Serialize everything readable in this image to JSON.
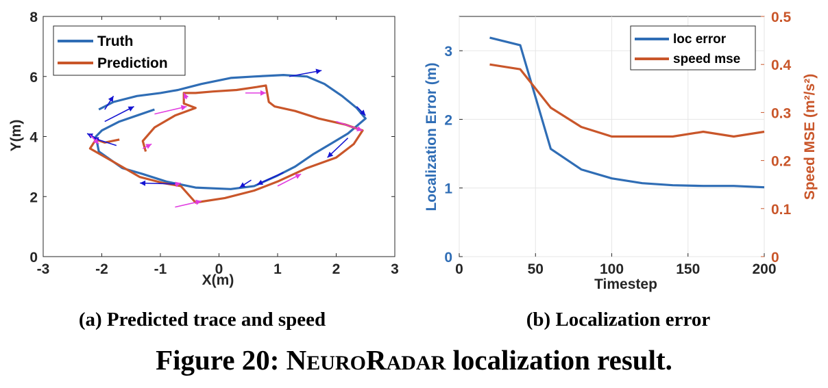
{
  "colors": {
    "blue": "#2f6db5",
    "orange": "#c9562a",
    "arrow_blue": "#1414d2",
    "arrow_magenta": "#e03ce0"
  },
  "chart_data": [
    {
      "type": "line",
      "xlabel": "X(m)",
      "ylabel": "Y(m)",
      "xlim": [
        -3,
        3
      ],
      "ylim": [
        0,
        8
      ],
      "x_ticks": [
        "-3",
        "-2",
        "-1",
        "0",
        "1",
        "2",
        "3"
      ],
      "y_ticks": [
        "0",
        "2",
        "4",
        "6",
        "8"
      ],
      "legend": {
        "position": "top-left",
        "entries": [
          "Truth",
          "Prediction"
        ]
      },
      "series": [
        {
          "name": "Truth",
          "points": [
            [
              -1.1,
              4.9
            ],
            [
              -1.4,
              4.7
            ],
            [
              -1.7,
              4.5
            ],
            [
              -2.0,
              4.2
            ],
            [
              -2.1,
              4.0
            ],
            [
              -2.05,
              3.5
            ],
            [
              -1.65,
              2.95
            ],
            [
              -1.3,
              2.75
            ],
            [
              -0.9,
              2.5
            ],
            [
              -0.4,
              2.3
            ],
            [
              0.2,
              2.25
            ],
            [
              0.6,
              2.35
            ],
            [
              1.0,
              2.7
            ],
            [
              1.3,
              3.0
            ],
            [
              1.6,
              3.4
            ],
            [
              1.9,
              3.75
            ],
            [
              2.2,
              4.1
            ],
            [
              2.5,
              4.6
            ],
            [
              2.35,
              4.95
            ],
            [
              2.1,
              5.35
            ],
            [
              1.8,
              5.75
            ],
            [
              1.5,
              6.0
            ],
            [
              1.1,
              6.05
            ],
            [
              0.6,
              6.0
            ],
            [
              0.2,
              5.95
            ],
            [
              -0.3,
              5.75
            ],
            [
              -0.7,
              5.55
            ],
            [
              -1.0,
              5.45
            ],
            [
              -1.4,
              5.35
            ],
            [
              -1.8,
              5.15
            ],
            [
              -2.05,
              4.9
            ]
          ]
        },
        {
          "name": "Prediction",
          "points": [
            [
              -1.7,
              3.9
            ],
            [
              -1.95,
              3.8
            ],
            [
              -2.1,
              3.9
            ],
            [
              -2.2,
              3.6
            ],
            [
              -1.75,
              3.1
            ],
            [
              -1.35,
              2.65
            ],
            [
              -0.95,
              2.45
            ],
            [
              -0.65,
              2.35
            ],
            [
              -0.4,
              1.8
            ],
            [
              0.1,
              1.95
            ],
            [
              0.6,
              2.2
            ],
            [
              1.0,
              2.5
            ],
            [
              1.5,
              2.95
            ],
            [
              2.0,
              3.3
            ],
            [
              2.3,
              3.75
            ],
            [
              2.45,
              4.2
            ],
            [
              2.15,
              4.4
            ],
            [
              1.7,
              4.6
            ],
            [
              1.3,
              4.85
            ],
            [
              0.95,
              5.0
            ],
            [
              0.85,
              5.15
            ],
            [
              0.8,
              5.7
            ],
            [
              0.65,
              5.65
            ],
            [
              0.3,
              5.55
            ],
            [
              -0.1,
              5.5
            ],
            [
              -0.4,
              5.45
            ],
            [
              -0.6,
              5.45
            ],
            [
              -0.6,
              5.1
            ],
            [
              -0.4,
              4.95
            ],
            [
              -0.75,
              4.7
            ],
            [
              -1.1,
              4.3
            ],
            [
              -1.3,
              3.85
            ],
            [
              -1.25,
              3.5
            ]
          ]
        }
      ],
      "arrows": [
        {
          "color": "arrow_blue",
          "from": [
            -1.95,
            4.9
          ],
          "to": [
            -1.8,
            5.35
          ]
        },
        {
          "color": "arrow_blue",
          "from": [
            -1.95,
            4.5
          ],
          "to": [
            -1.45,
            5.0
          ]
        },
        {
          "color": "arrow_blue",
          "from": [
            -2.05,
            3.9
          ],
          "to": [
            -2.25,
            4.1
          ]
        },
        {
          "color": "arrow_blue",
          "from": [
            -1.75,
            3.7
          ],
          "to": [
            -2.15,
            3.95
          ]
        },
        {
          "color": "arrow_blue",
          "from": [
            -0.75,
            2.42
          ],
          "to": [
            -1.35,
            2.45
          ]
        },
        {
          "color": "arrow_blue",
          "from": [
            0.55,
            2.55
          ],
          "to": [
            0.35,
            2.3
          ]
        },
        {
          "color": "arrow_blue",
          "from": [
            1.1,
            2.8
          ],
          "to": [
            0.65,
            2.4
          ]
        },
        {
          "color": "arrow_blue",
          "from": [
            2.2,
            3.95
          ],
          "to": [
            1.85,
            3.3
          ]
        },
        {
          "color": "arrow_blue",
          "from": [
            2.35,
            5.0
          ],
          "to": [
            2.5,
            4.7
          ]
        },
        {
          "color": "arrow_blue",
          "from": [
            1.2,
            6.0
          ],
          "to": [
            1.75,
            6.2
          ]
        },
        {
          "color": "arrow_magenta",
          "from": [
            -2.2,
            4.05
          ],
          "to": [
            -2.05,
            3.75
          ]
        },
        {
          "color": "arrow_magenta",
          "from": [
            -0.75,
            2.4
          ],
          "to": [
            -0.75,
            2.4
          ]
        },
        {
          "color": "arrow_magenta",
          "from": [
            -0.75,
            2.4
          ],
          "to": [
            -0.65,
            2.45
          ]
        },
        {
          "color": "arrow_magenta",
          "from": [
            -0.75,
            1.65
          ],
          "to": [
            -0.3,
            1.85
          ]
        },
        {
          "color": "arrow_magenta",
          "from": [
            1.0,
            2.35
          ],
          "to": [
            1.4,
            2.75
          ]
        },
        {
          "color": "arrow_magenta",
          "from": [
            2.0,
            4.5
          ],
          "to": [
            2.45,
            4.2
          ]
        },
        {
          "color": "arrow_magenta",
          "from": [
            0.45,
            5.45
          ],
          "to": [
            0.8,
            5.45
          ]
        },
        {
          "color": "arrow_magenta",
          "from": [
            -0.55,
            5.25
          ],
          "to": [
            -0.6,
            5.45
          ]
        },
        {
          "color": "arrow_magenta",
          "from": [
            -1.1,
            4.75
          ],
          "to": [
            -0.55,
            5.0
          ]
        },
        {
          "color": "arrow_magenta",
          "from": [
            -1.3,
            3.6
          ],
          "to": [
            -1.15,
            3.75
          ]
        }
      ]
    },
    {
      "type": "line",
      "xlabel": "Timestep",
      "ylabel": "Localization Error (m)",
      "ylabel_right": "Speed MSE (m²/s²)",
      "xlim": [
        0,
        200
      ],
      "ylim": [
        0,
        3.5
      ],
      "ylim_right": [
        0,
        0.5
      ],
      "grid": true,
      "x_ticks": [
        "0",
        "50",
        "100",
        "150",
        "200"
      ],
      "y_ticks": [
        "0",
        "1",
        "2",
        "3"
      ],
      "y_ticks_right": [
        "0",
        "0.1",
        "0.2",
        "0.3",
        "0.4",
        "0.5"
      ],
      "legend": {
        "position": "top-right",
        "entries": [
          "loc error",
          "speed mse"
        ]
      },
      "series": [
        {
          "name": "loc error",
          "axis": "left",
          "x": [
            20,
            40,
            60,
            80,
            100,
            120,
            140,
            160,
            180,
            200
          ],
          "values": [
            3.19,
            3.08,
            1.57,
            1.27,
            1.14,
            1.07,
            1.04,
            1.03,
            1.03,
            1.01
          ]
        },
        {
          "name": "speed mse",
          "axis": "right",
          "x": [
            20,
            40,
            60,
            80,
            100,
            120,
            140,
            160,
            180,
            200
          ],
          "values": [
            0.4,
            0.39,
            0.31,
            0.27,
            0.25,
            0.25,
            0.25,
            0.26,
            0.25,
            0.26
          ]
        }
      ]
    }
  ],
  "captions": {
    "a": "(a)  Predicted trace and speed",
    "b": "(b)  Localization error"
  },
  "figure_title": {
    "prefix": "Figure 20: ",
    "n1": "N",
    "n2": "EURO",
    "n3": "R",
    "n4": "ADAR",
    "suffix": " localization result."
  }
}
